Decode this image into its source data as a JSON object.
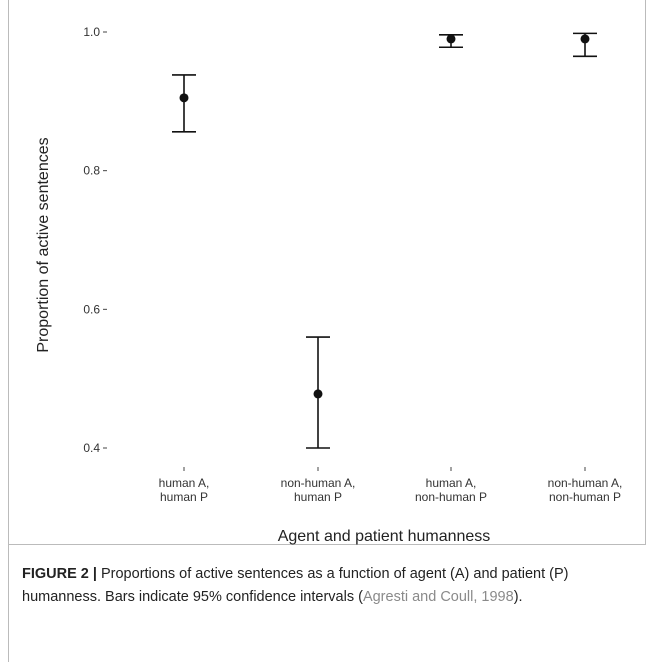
{
  "chart_data": {
    "type": "scatter",
    "xlabel": "Agent and patient humanness",
    "ylabel": "Proportion of active sentences",
    "ylim": [
      0.38,
      1.02
    ],
    "yticks": [
      0.4,
      0.6,
      0.8,
      1.0
    ],
    "ytick_labels": [
      "0.4",
      "0.6",
      "0.8",
      "1.0"
    ],
    "categories": [
      [
        "human A,",
        "human P"
      ],
      [
        "non-human A,",
        "human P"
      ],
      [
        "human A,",
        "non-human P"
      ],
      [
        "non-human A,",
        "non-human P"
      ]
    ],
    "values": [
      0.905,
      0.478,
      0.99,
      0.99
    ],
    "ci_lower": [
      0.856,
      0.4,
      0.978,
      0.965
    ],
    "ci_upper": [
      0.938,
      0.56,
      0.996,
      0.998
    ],
    "error_bars": "95% confidence intervals",
    "grid": false,
    "legend": "none",
    "colors": {
      "marker": "#111111",
      "axis_text": "#333333"
    }
  },
  "caption": {
    "label": "FIGURE 2 |",
    "text_before": " Proportions of active sentences as a function of agent (A) and patient (P) humanness. Bars indicate 95% confidence intervals (",
    "reference": "Agresti and Coull, 1998",
    "text_after": ")."
  }
}
